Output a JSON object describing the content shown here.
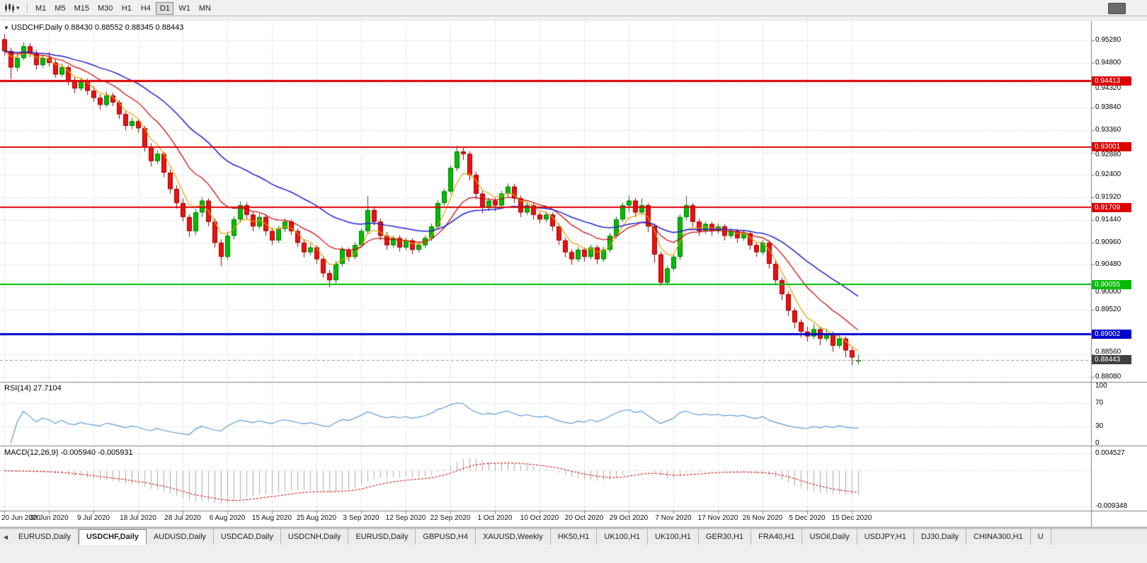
{
  "toolbar": {
    "timeframes": [
      {
        "label": "M1"
      },
      {
        "label": "M5"
      },
      {
        "label": "M15"
      },
      {
        "label": "M30"
      },
      {
        "label": "H1"
      },
      {
        "label": "H4"
      },
      {
        "label": "D1"
      },
      {
        "label": "W1"
      },
      {
        "label": "MN"
      }
    ],
    "active_timeframe": "D1"
  },
  "chart": {
    "title": "USDCHF,Daily 0.88430 0.88552 0.88345 0.88443",
    "bg": "#FFFFFF",
    "grid_color": "#C4C4C4"
  },
  "price_axis": {
    "ticks": [
      "0.95280",
      "0.94800",
      "0.94320",
      "0.93840",
      "0.93360",
      "0.92880",
      "0.92400",
      "0.91920",
      "0.91440",
      "0.90960",
      "0.90480",
      "0.90000",
      "0.89520",
      "0.88560",
      "0.88080"
    ]
  },
  "levels": [
    {
      "price": 0.94413,
      "label": "0.94413",
      "color": "#dd0000",
      "width": 3
    },
    {
      "price": 0.93001,
      "label": "0.93001",
      "color": "#dd0000",
      "width": 2
    },
    {
      "price": 0.91709,
      "label": "0.91709",
      "color": "#dd0000",
      "width": 2
    },
    {
      "price": 0.90055,
      "label": "0.90055",
      "color": "#00bb00",
      "width": 2
    },
    {
      "price": 0.89002,
      "label": "0.89002",
      "color": "#0000cc",
      "width": 3
    }
  ],
  "current_price": {
    "price": 0.88443,
    "label": "0.88443",
    "color": "#404040"
  },
  "rsi": {
    "label": "RSI(14) 27.7104",
    "period": 14,
    "value": 27.7104,
    "axis": [
      "100",
      "70",
      "30",
      "0"
    ],
    "axis_values": [
      100,
      70,
      30,
      0
    ],
    "levels": [
      70,
      30
    ],
    "line_color": "#5b9bd5"
  },
  "macd": {
    "label": "MACD(12,26,9) -0.005940 -0.005931",
    "fast": 12,
    "slow": 26,
    "signal_period": 9,
    "main_value": -0.00594,
    "signal_value": -0.005931,
    "axis": [
      "0.004527",
      "-0.009348"
    ],
    "axis_values": [
      0.004527,
      -0.009348
    ],
    "hist_color": "#adadad",
    "signal_color": "#cc0000"
  },
  "chart_data": {
    "type": "candlestick",
    "symbol": "USDCHF",
    "timeframe": "Daily",
    "ohlc_last": {
      "open": 0.8843,
      "high": 0.88552,
      "low": 0.88345,
      "close": 0.88443
    },
    "ylim": [
      0.87974,
      0.95688
    ],
    "up_color": "#00be00",
    "up_border": "#007700",
    "down_color": "#ee1111",
    "down_border": "#990000",
    "moving_averages": [
      {
        "period": 30,
        "color": "#2222cc"
      },
      {
        "period": 13,
        "color": "#cc0000"
      },
      {
        "period": 5,
        "color": "#e8a000"
      }
    ],
    "x_tick_indices": [
      0,
      7,
      14,
      21,
      28,
      35,
      42,
      49,
      56,
      63,
      70,
      77,
      84,
      91,
      98,
      105,
      112,
      119,
      126,
      133
    ],
    "x_tick_labels": [
      "20 Jun 2020",
      "30 Jun 2020",
      "9 Jul 2020",
      "18 Jul 2020",
      "28 Jul 2020",
      "6 Aug 2020",
      "15 Aug 2020",
      "25 Aug 2020",
      "3 Sep 2020",
      "12 Sep 2020",
      "22 Sep 2020",
      "1 Oct 2020",
      "10 Oct 2020",
      "20 Oct 2020",
      "29 Oct 2020",
      "7 Nov 2020",
      "17 Nov 2020",
      "26 Nov 2020",
      "5 Dec 2020",
      "15 Dec 2020"
    ],
    "candles": [
      [
        0.953,
        0.9541,
        0.9495,
        0.9505
      ],
      [
        0.9505,
        0.9512,
        0.9445,
        0.947
      ],
      [
        0.947,
        0.9498,
        0.9462,
        0.949
      ],
      [
        0.949,
        0.9524,
        0.9485,
        0.9515
      ],
      [
        0.9515,
        0.9522,
        0.9492,
        0.95
      ],
      [
        0.95,
        0.9507,
        0.9465,
        0.9475
      ],
      [
        0.9475,
        0.9497,
        0.947,
        0.949
      ],
      [
        0.949,
        0.9503,
        0.9472,
        0.948
      ],
      [
        0.948,
        0.9488,
        0.9448,
        0.9455
      ],
      [
        0.9455,
        0.9478,
        0.945,
        0.947
      ],
      [
        0.947,
        0.9475,
        0.9432,
        0.944
      ],
      [
        0.944,
        0.9451,
        0.9415,
        0.9425
      ],
      [
        0.9425,
        0.9448,
        0.942,
        0.944
      ],
      [
        0.944,
        0.9446,
        0.9411,
        0.942
      ],
      [
        0.942,
        0.9429,
        0.9396,
        0.9405
      ],
      [
        0.9405,
        0.9412,
        0.938,
        0.939
      ],
      [
        0.939,
        0.9418,
        0.9385,
        0.941
      ],
      [
        0.941,
        0.9416,
        0.9387,
        0.9395
      ],
      [
        0.9395,
        0.94,
        0.936,
        0.937
      ],
      [
        0.937,
        0.9376,
        0.9335,
        0.9345
      ],
      [
        0.9345,
        0.9362,
        0.9338,
        0.9355
      ],
      [
        0.9355,
        0.936,
        0.933,
        0.934
      ],
      [
        0.934,
        0.9345,
        0.929,
        0.93
      ],
      [
        0.93,
        0.9308,
        0.9258,
        0.927
      ],
      [
        0.927,
        0.9292,
        0.9263,
        0.9285
      ],
      [
        0.9285,
        0.929,
        0.9235,
        0.9245
      ],
      [
        0.9245,
        0.9252,
        0.92,
        0.921
      ],
      [
        0.921,
        0.9218,
        0.9168,
        0.918
      ],
      [
        0.918,
        0.919,
        0.914,
        0.915
      ],
      [
        0.915,
        0.9156,
        0.9108,
        0.912
      ],
      [
        0.912,
        0.9168,
        0.9112,
        0.916
      ],
      [
        0.916,
        0.9193,
        0.915,
        0.9185
      ],
      [
        0.9185,
        0.919,
        0.913,
        0.914
      ],
      [
        0.914,
        0.9147,
        0.9085,
        0.9095
      ],
      [
        0.9095,
        0.9102,
        0.9045,
        0.9065
      ],
      [
        0.9065,
        0.9118,
        0.9058,
        0.911
      ],
      [
        0.911,
        0.9152,
        0.9102,
        0.9145
      ],
      [
        0.9145,
        0.9183,
        0.9138,
        0.9175
      ],
      [
        0.9175,
        0.9181,
        0.9146,
        0.9155
      ],
      [
        0.9155,
        0.9161,
        0.912,
        0.913
      ],
      [
        0.913,
        0.9158,
        0.9124,
        0.915
      ],
      [
        0.915,
        0.9155,
        0.911,
        0.912
      ],
      [
        0.912,
        0.9127,
        0.909,
        0.91
      ],
      [
        0.91,
        0.9132,
        0.9094,
        0.9125
      ],
      [
        0.9125,
        0.9147,
        0.9118,
        0.914
      ],
      [
        0.914,
        0.9145,
        0.9112,
        0.912
      ],
      [
        0.912,
        0.9126,
        0.9086,
        0.9095
      ],
      [
        0.9095,
        0.9101,
        0.9064,
        0.9075
      ],
      [
        0.9075,
        0.9093,
        0.9068,
        0.9085
      ],
      [
        0.9085,
        0.909,
        0.905,
        0.906
      ],
      [
        0.906,
        0.9066,
        0.902,
        0.903
      ],
      [
        0.903,
        0.9037,
        0.9,
        0.9015
      ],
      [
        0.9015,
        0.9056,
        0.9008,
        0.905
      ],
      [
        0.905,
        0.9086,
        0.9044,
        0.908
      ],
      [
        0.908,
        0.9085,
        0.9055,
        0.9065
      ],
      [
        0.9065,
        0.9096,
        0.906,
        0.909
      ],
      [
        0.909,
        0.9126,
        0.9084,
        0.912
      ],
      [
        0.912,
        0.9195,
        0.9114,
        0.9165
      ],
      [
        0.9165,
        0.9172,
        0.9132,
        0.914
      ],
      [
        0.914,
        0.9147,
        0.91,
        0.911
      ],
      [
        0.911,
        0.9118,
        0.908,
        0.909
      ],
      [
        0.909,
        0.911,
        0.9084,
        0.9105
      ],
      [
        0.9105,
        0.9111,
        0.9076,
        0.9085
      ],
      [
        0.9085,
        0.9106,
        0.9079,
        0.91
      ],
      [
        0.91,
        0.9105,
        0.9071,
        0.908
      ],
      [
        0.908,
        0.9097,
        0.9074,
        0.909
      ],
      [
        0.909,
        0.9111,
        0.9084,
        0.9105
      ],
      [
        0.9105,
        0.9136,
        0.9099,
        0.913
      ],
      [
        0.913,
        0.9186,
        0.9124,
        0.918
      ],
      [
        0.918,
        0.9211,
        0.9174,
        0.9205
      ],
      [
        0.9205,
        0.9261,
        0.9199,
        0.9255
      ],
      [
        0.9255,
        0.9302,
        0.9248,
        0.929
      ],
      [
        0.929,
        0.93,
        0.9272,
        0.9285
      ],
      [
        0.9285,
        0.9291,
        0.9228,
        0.924
      ],
      [
        0.924,
        0.9247,
        0.9188,
        0.92
      ],
      [
        0.92,
        0.9206,
        0.9158,
        0.917
      ],
      [
        0.917,
        0.9191,
        0.9163,
        0.9185
      ],
      [
        0.9185,
        0.9192,
        0.9162,
        0.9175
      ],
      [
        0.9175,
        0.9206,
        0.9169,
        0.92
      ],
      [
        0.92,
        0.9222,
        0.9193,
        0.9215
      ],
      [
        0.9215,
        0.9221,
        0.918,
        0.919
      ],
      [
        0.919,
        0.9196,
        0.915,
        0.916
      ],
      [
        0.916,
        0.9181,
        0.9154,
        0.9175
      ],
      [
        0.9175,
        0.918,
        0.9145,
        0.9155
      ],
      [
        0.9155,
        0.9161,
        0.9136,
        0.9145
      ],
      [
        0.9145,
        0.9161,
        0.9139,
        0.9155
      ],
      [
        0.9155,
        0.916,
        0.912,
        0.913
      ],
      [
        0.913,
        0.9136,
        0.909,
        0.91
      ],
      [
        0.91,
        0.9106,
        0.9064,
        0.9075
      ],
      [
        0.9075,
        0.9081,
        0.9048,
        0.906
      ],
      [
        0.906,
        0.9086,
        0.9054,
        0.908
      ],
      [
        0.908,
        0.9085,
        0.9055,
        0.9065
      ],
      [
        0.9065,
        0.9091,
        0.9059,
        0.9085
      ],
      [
        0.9085,
        0.909,
        0.905,
        0.906
      ],
      [
        0.906,
        0.9086,
        0.9054,
        0.908
      ],
      [
        0.908,
        0.9116,
        0.9074,
        0.911
      ],
      [
        0.911,
        0.9151,
        0.9104,
        0.9145
      ],
      [
        0.9145,
        0.9181,
        0.9139,
        0.9175
      ],
      [
        0.9175,
        0.9196,
        0.916,
        0.9185
      ],
      [
        0.9185,
        0.9191,
        0.915,
        0.916
      ],
      [
        0.916,
        0.919,
        0.9154,
        0.9175
      ],
      [
        0.9175,
        0.918,
        0.9118,
        0.913
      ],
      [
        0.913,
        0.9136,
        0.9052,
        0.907
      ],
      [
        0.907,
        0.9076,
        0.9003,
        0.901
      ],
      [
        0.901,
        0.9046,
        0.9004,
        0.904
      ],
      [
        0.904,
        0.9071,
        0.9034,
        0.9065
      ],
      [
        0.9065,
        0.9156,
        0.9058,
        0.915
      ],
      [
        0.915,
        0.9195,
        0.9143,
        0.9175
      ],
      [
        0.9175,
        0.918,
        0.913,
        0.914
      ],
      [
        0.914,
        0.9146,
        0.911,
        0.912
      ],
      [
        0.912,
        0.9141,
        0.9114,
        0.9135
      ],
      [
        0.9135,
        0.914,
        0.911,
        0.912
      ],
      [
        0.912,
        0.9136,
        0.9114,
        0.913
      ],
      [
        0.913,
        0.9135,
        0.91,
        0.911
      ],
      [
        0.911,
        0.9126,
        0.9104,
        0.912
      ],
      [
        0.912,
        0.9125,
        0.9095,
        0.9105
      ],
      [
        0.9105,
        0.9121,
        0.9099,
        0.9115
      ],
      [
        0.9115,
        0.912,
        0.908,
        0.909
      ],
      [
        0.909,
        0.9095,
        0.9065,
        0.9075
      ],
      [
        0.9075,
        0.9101,
        0.9069,
        0.9095
      ],
      [
        0.9095,
        0.91,
        0.904,
        0.905
      ],
      [
        0.905,
        0.9056,
        0.9004,
        0.9015
      ],
      [
        0.9015,
        0.9021,
        0.8972,
        0.8985
      ],
      [
        0.8985,
        0.8991,
        0.8938,
        0.895
      ],
      [
        0.895,
        0.8956,
        0.8912,
        0.8925
      ],
      [
        0.8925,
        0.8931,
        0.8892,
        0.8905
      ],
      [
        0.8905,
        0.8916,
        0.8884,
        0.8895
      ],
      [
        0.8895,
        0.8921,
        0.8889,
        0.891
      ],
      [
        0.891,
        0.8915,
        0.8876,
        0.889
      ],
      [
        0.889,
        0.8911,
        0.8884,
        0.89
      ],
      [
        0.89,
        0.8905,
        0.8862,
        0.8875
      ],
      [
        0.8875,
        0.8901,
        0.8869,
        0.889
      ],
      [
        0.889,
        0.8895,
        0.885,
        0.8865
      ],
      [
        0.8865,
        0.8871,
        0.8833,
        0.885
      ],
      [
        0.8843,
        0.88552,
        0.88345,
        0.88443
      ]
    ]
  },
  "tabs": {
    "items": [
      {
        "label": "EURUSD,Daily"
      },
      {
        "label": "USDCHF,Daily",
        "active": true
      },
      {
        "label": "AUDUSD,Daily"
      },
      {
        "label": "USDCAD,Daily"
      },
      {
        "label": "USDCNH,Daily"
      },
      {
        "label": "EURUSD,Daily"
      },
      {
        "label": "GBPUSD,H4"
      },
      {
        "label": "XAUUSD,Weekly"
      },
      {
        "label": "HK50,H1"
      },
      {
        "label": "UK100,H1"
      },
      {
        "label": "UK100,H1"
      },
      {
        "label": "GER30,H1"
      },
      {
        "label": "FRA40,H1"
      },
      {
        "label": "USOil,Daily"
      },
      {
        "label": "USDJPY,H1"
      },
      {
        "label": "DJ30,Daily"
      },
      {
        "label": "CHINA300,H1"
      },
      {
        "label": "U",
        "partial": true
      }
    ]
  }
}
